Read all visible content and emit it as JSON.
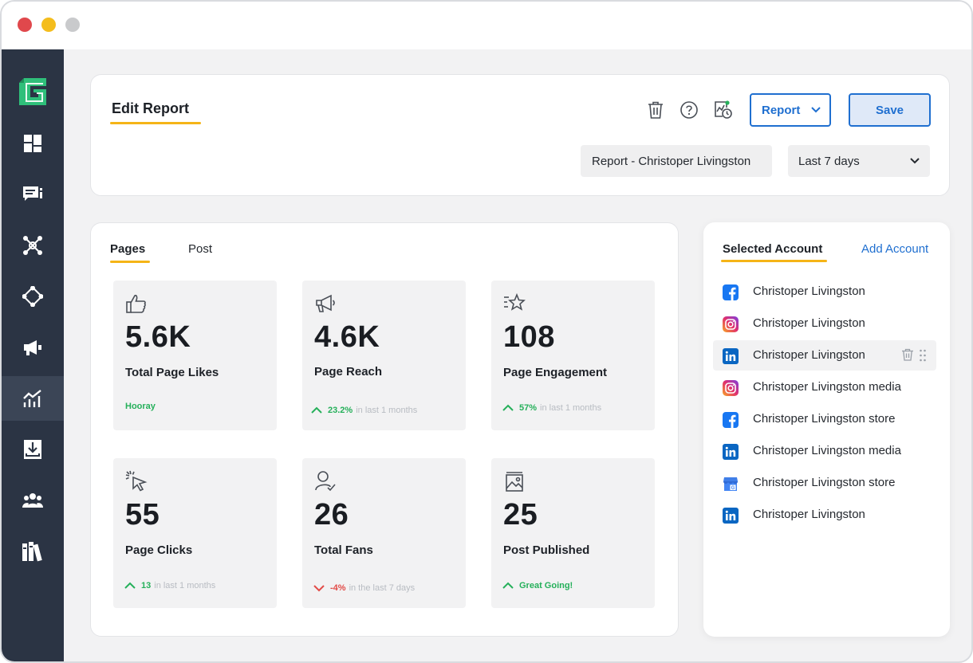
{
  "header": {
    "title": "Edit Report",
    "report_dropdown_label": "Report",
    "save_label": "Save",
    "report_name": "Report - Christoper Livingston",
    "date_range": "Last 7 days"
  },
  "tabs": [
    {
      "label": "Pages",
      "active": true
    },
    {
      "label": "Post",
      "active": false
    }
  ],
  "metrics": [
    {
      "icon": "thumbs-up-icon",
      "value": "5.6K",
      "label": "Total Page Likes",
      "trend": "none",
      "highlight": "Hooray",
      "note": ""
    },
    {
      "icon": "megaphone-icon",
      "value": "4.6K",
      "label": "Page Reach",
      "trend": "up",
      "highlight": "23.2%",
      "note": "in last 1 months"
    },
    {
      "icon": "star-icon",
      "value": "108",
      "label": "Page Engagement",
      "trend": "up",
      "highlight": "57%",
      "note": "in last 1 months"
    },
    {
      "icon": "cursor-click-icon",
      "value": "55",
      "label": "Page Clicks",
      "trend": "up",
      "highlight": "13",
      "note": "in last 1 months"
    },
    {
      "icon": "user-check-icon",
      "value": "26",
      "label": "Total Fans",
      "trend": "down",
      "highlight": "-4%",
      "note": "in the last 7 days"
    },
    {
      "icon": "image-icon",
      "value": "25",
      "label": "Post Published",
      "trend": "up",
      "highlight": "Great Going!",
      "note": ""
    }
  ],
  "accounts": {
    "title": "Selected Account",
    "add_label": "Add Account",
    "items": [
      {
        "platform": "facebook",
        "name": "Christoper Livingston"
      },
      {
        "platform": "instagram",
        "name": "Christoper Livingston"
      },
      {
        "platform": "linkedin",
        "name": "Christoper Livingston",
        "hovered": true
      },
      {
        "platform": "instagram",
        "name": "Christoper Livingston media"
      },
      {
        "platform": "facebook",
        "name": "Christoper Livingston store"
      },
      {
        "platform": "linkedin",
        "name": "Christoper Livingston media"
      },
      {
        "platform": "google-business",
        "name": "Christoper Livingston store"
      },
      {
        "platform": "linkedin",
        "name": "Christoper Livingston"
      }
    ]
  },
  "sidebar": {
    "items": [
      {
        "icon": "dashboard-icon"
      },
      {
        "icon": "chat-icon"
      },
      {
        "icon": "network-icon"
      },
      {
        "icon": "workflow-icon"
      },
      {
        "icon": "megaphone-icon"
      },
      {
        "icon": "analytics-icon",
        "active": true
      },
      {
        "icon": "download-icon"
      },
      {
        "icon": "team-icon"
      },
      {
        "icon": "library-icon"
      }
    ]
  },
  "colors": {
    "sidebar_bg": "#2b3444",
    "accent_blue": "#1f6fd0",
    "accent_yellow": "#f5b417",
    "positive": "#25b05a",
    "negative": "#e24b47",
    "brand_green": "#2fbf7a"
  }
}
